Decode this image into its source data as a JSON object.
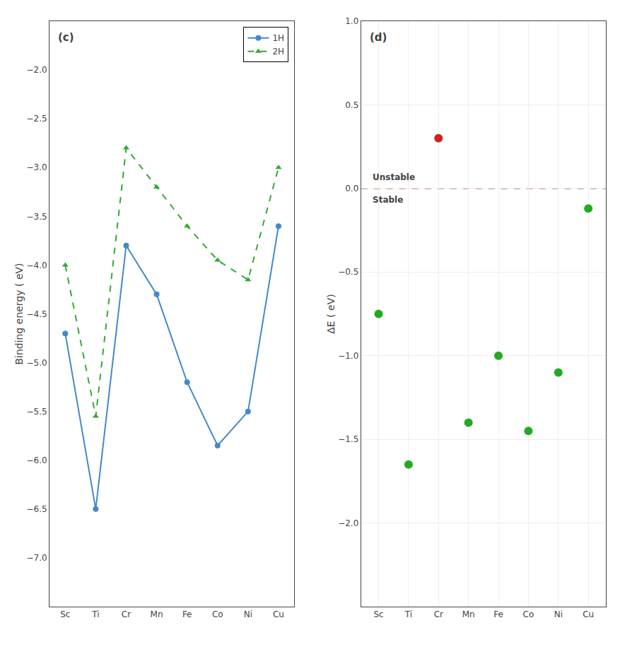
{
  "chart_data": [
    {
      "type": "line",
      "title": "(c)",
      "y_label": "Binding energy ( eV)",
      "categories": [
        "Sc",
        "Ti",
        "Cr",
        "Mn",
        "Fe",
        "Co",
        "Ni",
        "Cu"
      ],
      "series": [
        {
          "name": "1H",
          "color": "#4488cc",
          "marker": "circle",
          "line_style": "solid",
          "values": [
            -4.7,
            -6.5,
            -3.8,
            -4.3,
            -5.2,
            -5.85,
            -5.5,
            -3.6
          ]
        },
        {
          "name": "2H",
          "color": "#33aa33",
          "marker": "triangle-up",
          "line_style": "dash",
          "values": [
            -4.0,
            -5.55,
            -2.8,
            -3.2,
            -3.6,
            -3.95,
            -4.15,
            -3.0
          ]
        }
      ],
      "ylim": [
        -7.5,
        -1.5
      ],
      "yticks": [
        {
          "value": -7.0,
          "label": "−7.0"
        },
        {
          "value": -6.5,
          "label": "−6.5"
        },
        {
          "value": -6.0,
          "label": "−6.0"
        },
        {
          "value": -5.5,
          "label": "−5.5"
        },
        {
          "value": -5.0,
          "label": "−5.0"
        },
        {
          "value": -4.5,
          "label": "−4.5"
        },
        {
          "value": -4.0,
          "label": "−4.0"
        },
        {
          "value": -3.5,
          "label": "−3.5"
        },
        {
          "value": -3.0,
          "label": "−3.0"
        },
        {
          "value": -2.5,
          "label": "−2.5"
        },
        {
          "value": -2.0,
          "label": "−2.0"
        }
      ],
      "grid": false,
      "legend": "upper right"
    },
    {
      "type": "scatter",
      "title": "(d)",
      "y_label": "ΔE ( eV)",
      "categories": [
        "Sc",
        "Ti",
        "Cr",
        "Mn",
        "Fe",
        "Co",
        "Ni",
        "Cu"
      ],
      "values": [
        -0.75,
        -1.65,
        0.3,
        -1.4,
        -1.0,
        -1.45,
        -1.1,
        -0.12
      ],
      "colors": [
        "#22aa22",
        "#22aa22",
        "#cc2222",
        "#22aa22",
        "#22aa22",
        "#22aa22",
        "#22aa22",
        "#22aa22"
      ],
      "threshold": 0.0,
      "annotations": [
        "Unstable",
        "Stable"
      ],
      "ylim": [
        -2.5,
        1.0
      ],
      "yticks": [
        {
          "value": -2.0,
          "label": "−2.0"
        },
        {
          "value": -1.5,
          "label": "−1.5"
        },
        {
          "value": -1.0,
          "label": "−1.0"
        },
        {
          "value": -0.5,
          "label": "−0.5"
        },
        {
          "value": 0.0,
          "label": "0.0"
        },
        {
          "value": 0.5,
          "label": "0.5"
        },
        {
          "value": 1.0,
          "label": "1.0"
        }
      ],
      "grid": true
    }
  ]
}
